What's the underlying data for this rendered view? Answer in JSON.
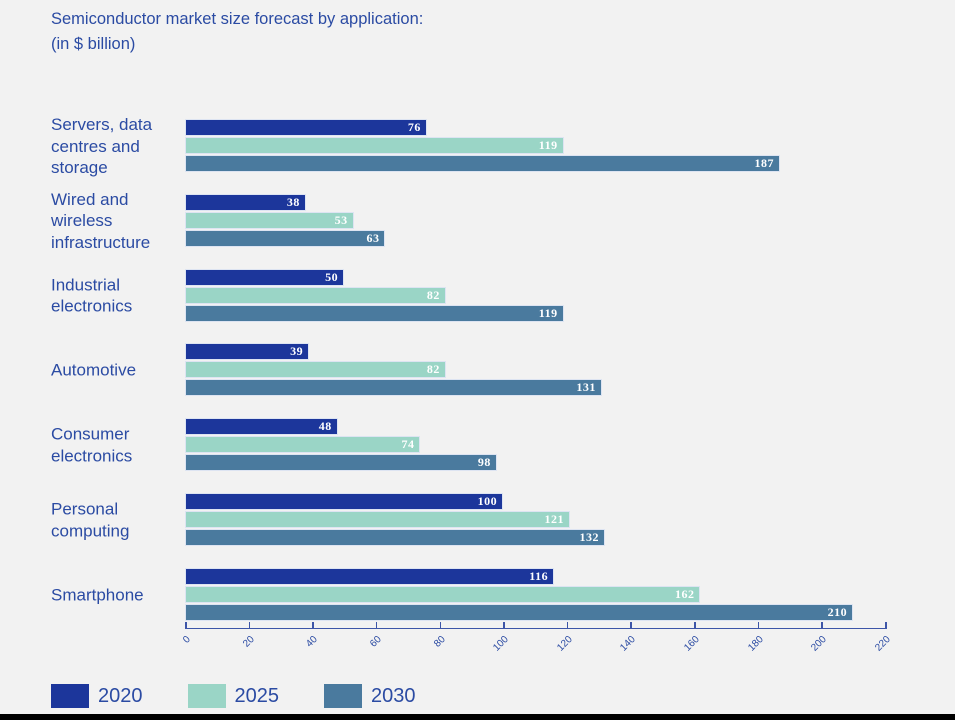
{
  "title": {
    "line1": "Semiconductor market size forecast by application:",
    "line2": "(in $ billion)"
  },
  "chart_data": {
    "type": "bar",
    "orientation": "horizontal",
    "title": "Semiconductor market size forecast by application: (in $ billion)",
    "categories": [
      "Servers, data centres and storage",
      "Wired and wireless infrastructure",
      "Industrial electronics",
      "Automotive",
      "Consumer electronics",
      "Personal computing",
      "Smartphone"
    ],
    "series": [
      {
        "name": "2020",
        "color": "#1c369b",
        "values": [
          76,
          38,
          50,
          39,
          48,
          100,
          116
        ]
      },
      {
        "name": "2025",
        "color": "#9ad5c6",
        "values": [
          119,
          53,
          82,
          82,
          74,
          121,
          162
        ]
      },
      {
        "name": "2030",
        "color": "#4a7a9e",
        "values": [
          187,
          63,
          119,
          131,
          98,
          132,
          210
        ]
      }
    ],
    "xlim": [
      0,
      220
    ],
    "x_ticks": [
      0,
      20,
      40,
      60,
      80,
      100,
      120,
      140,
      160,
      180,
      200,
      220
    ],
    "value_labels": true,
    "grid": false,
    "legend_position": "bottom"
  },
  "legend": {
    "items": [
      {
        "label": "2020",
        "color": "#1c369b"
      },
      {
        "label": "2025",
        "color": "#9ad5c6"
      },
      {
        "label": "2030",
        "color": "#4a7a9e"
      }
    ]
  },
  "colors": {
    "background": "#f2f2f2",
    "text": "#2b4ba3",
    "axis": "#3d55a8",
    "bar_border": "#dde4f2",
    "value_label": "#ffffff"
  }
}
